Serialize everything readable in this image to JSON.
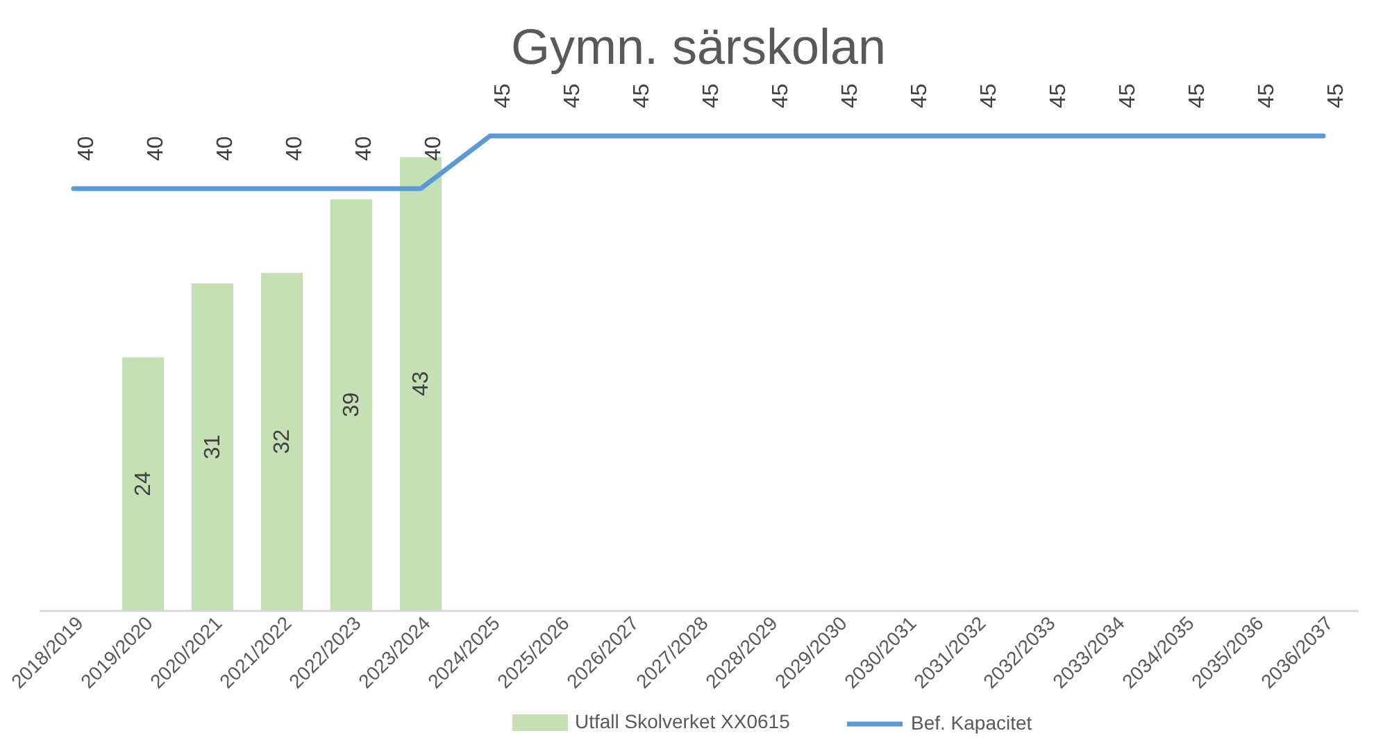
{
  "chart_data": {
    "type": "bar",
    "title": "Gymn. särskolan",
    "categories": [
      "2018/2019",
      "2019/2020",
      "2020/2021",
      "2021/2022",
      "2022/2023",
      "2023/2024",
      "2024/2025",
      "2025/2026",
      "2026/2027",
      "2027/2028",
      "2028/2029",
      "2029/2030",
      "2030/2031",
      "2031/2032",
      "2032/2033",
      "2033/2034",
      "2034/2035",
      "2035/2036",
      "2036/2037"
    ],
    "series": [
      {
        "name": "Utfall Skolverket XX0615",
        "color": "#c5e0b4",
        "values": [
          null,
          24,
          31,
          32,
          39,
          43,
          null,
          null,
          null,
          null,
          null,
          null,
          null,
          null,
          null,
          null,
          null,
          null,
          null
        ]
      },
      {
        "name": "Bef. Kapacitet",
        "type": "line",
        "color": "#5b9bd5",
        "values": [
          40,
          40,
          40,
          40,
          40,
          40,
          45,
          45,
          45,
          45,
          45,
          45,
          45,
          45,
          45,
          45,
          45,
          45,
          45
        ]
      }
    ],
    "data_labels": true,
    "tick_labels": "x",
    "legend": "bottom",
    "line_style": "solid",
    "marker": "none"
  }
}
